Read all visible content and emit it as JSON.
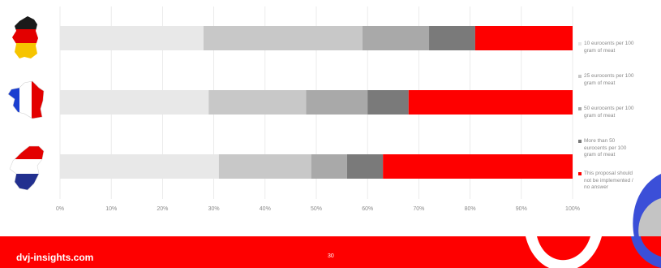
{
  "chart_data": {
    "type": "bar",
    "orientation": "horizontal",
    "stacked": true,
    "percent_stacked": true,
    "categories": [
      "Germany",
      "France",
      "Netherlands"
    ],
    "category_icons": [
      "germany-flag-map-icon",
      "france-flag-map-icon",
      "netherlands-flag-map-icon"
    ],
    "series": [
      {
        "name": "10 eurocents per 100 gram of meat",
        "values": [
          28,
          29,
          31
        ],
        "color": "#e8e8e8"
      },
      {
        "name": "25 eurocents per 100 gram of meat",
        "values": [
          31,
          19,
          18
        ],
        "color": "#c8c8c8"
      },
      {
        "name": "50 eurocents per 100 gram of meat",
        "values": [
          13,
          12,
          7
        ],
        "color": "#a9a9a9"
      },
      {
        "name": "More than 50 eurocents per 100 gram of meat",
        "values": [
          9,
          8,
          7
        ],
        "color": "#7a7a7a"
      },
      {
        "name": "This proposal should not be implemented / no answer",
        "values": [
          19,
          32,
          37
        ],
        "color": "#fe0000"
      }
    ],
    "xlim": [
      0,
      100
    ],
    "x_tick_labels": [
      "0%",
      "10%",
      "20%",
      "30%",
      "40%",
      "50%",
      "60%",
      "70%",
      "80%",
      "90%",
      "100%"
    ],
    "grid": true,
    "legend_position": "right"
  },
  "legend_lines": [
    [
      "10 eurocents per 100",
      "gram of meat"
    ],
    [
      "25 eurocents per 100",
      "gram of meat"
    ],
    [
      "50 eurocents per 100",
      "gram of meat"
    ],
    [
      "More than 50",
      "eurocents per 100",
      "gram of meat"
    ],
    [
      "This proposal should",
      "not be implemented /",
      "no answer"
    ]
  ],
  "footer": {
    "website": "dvj-insights.com",
    "page_number": "30"
  },
  "colors": {
    "brand_red": "#fe0000",
    "deco_blue": "#3b4fd8",
    "deco_gray": "#c4c4c4"
  }
}
